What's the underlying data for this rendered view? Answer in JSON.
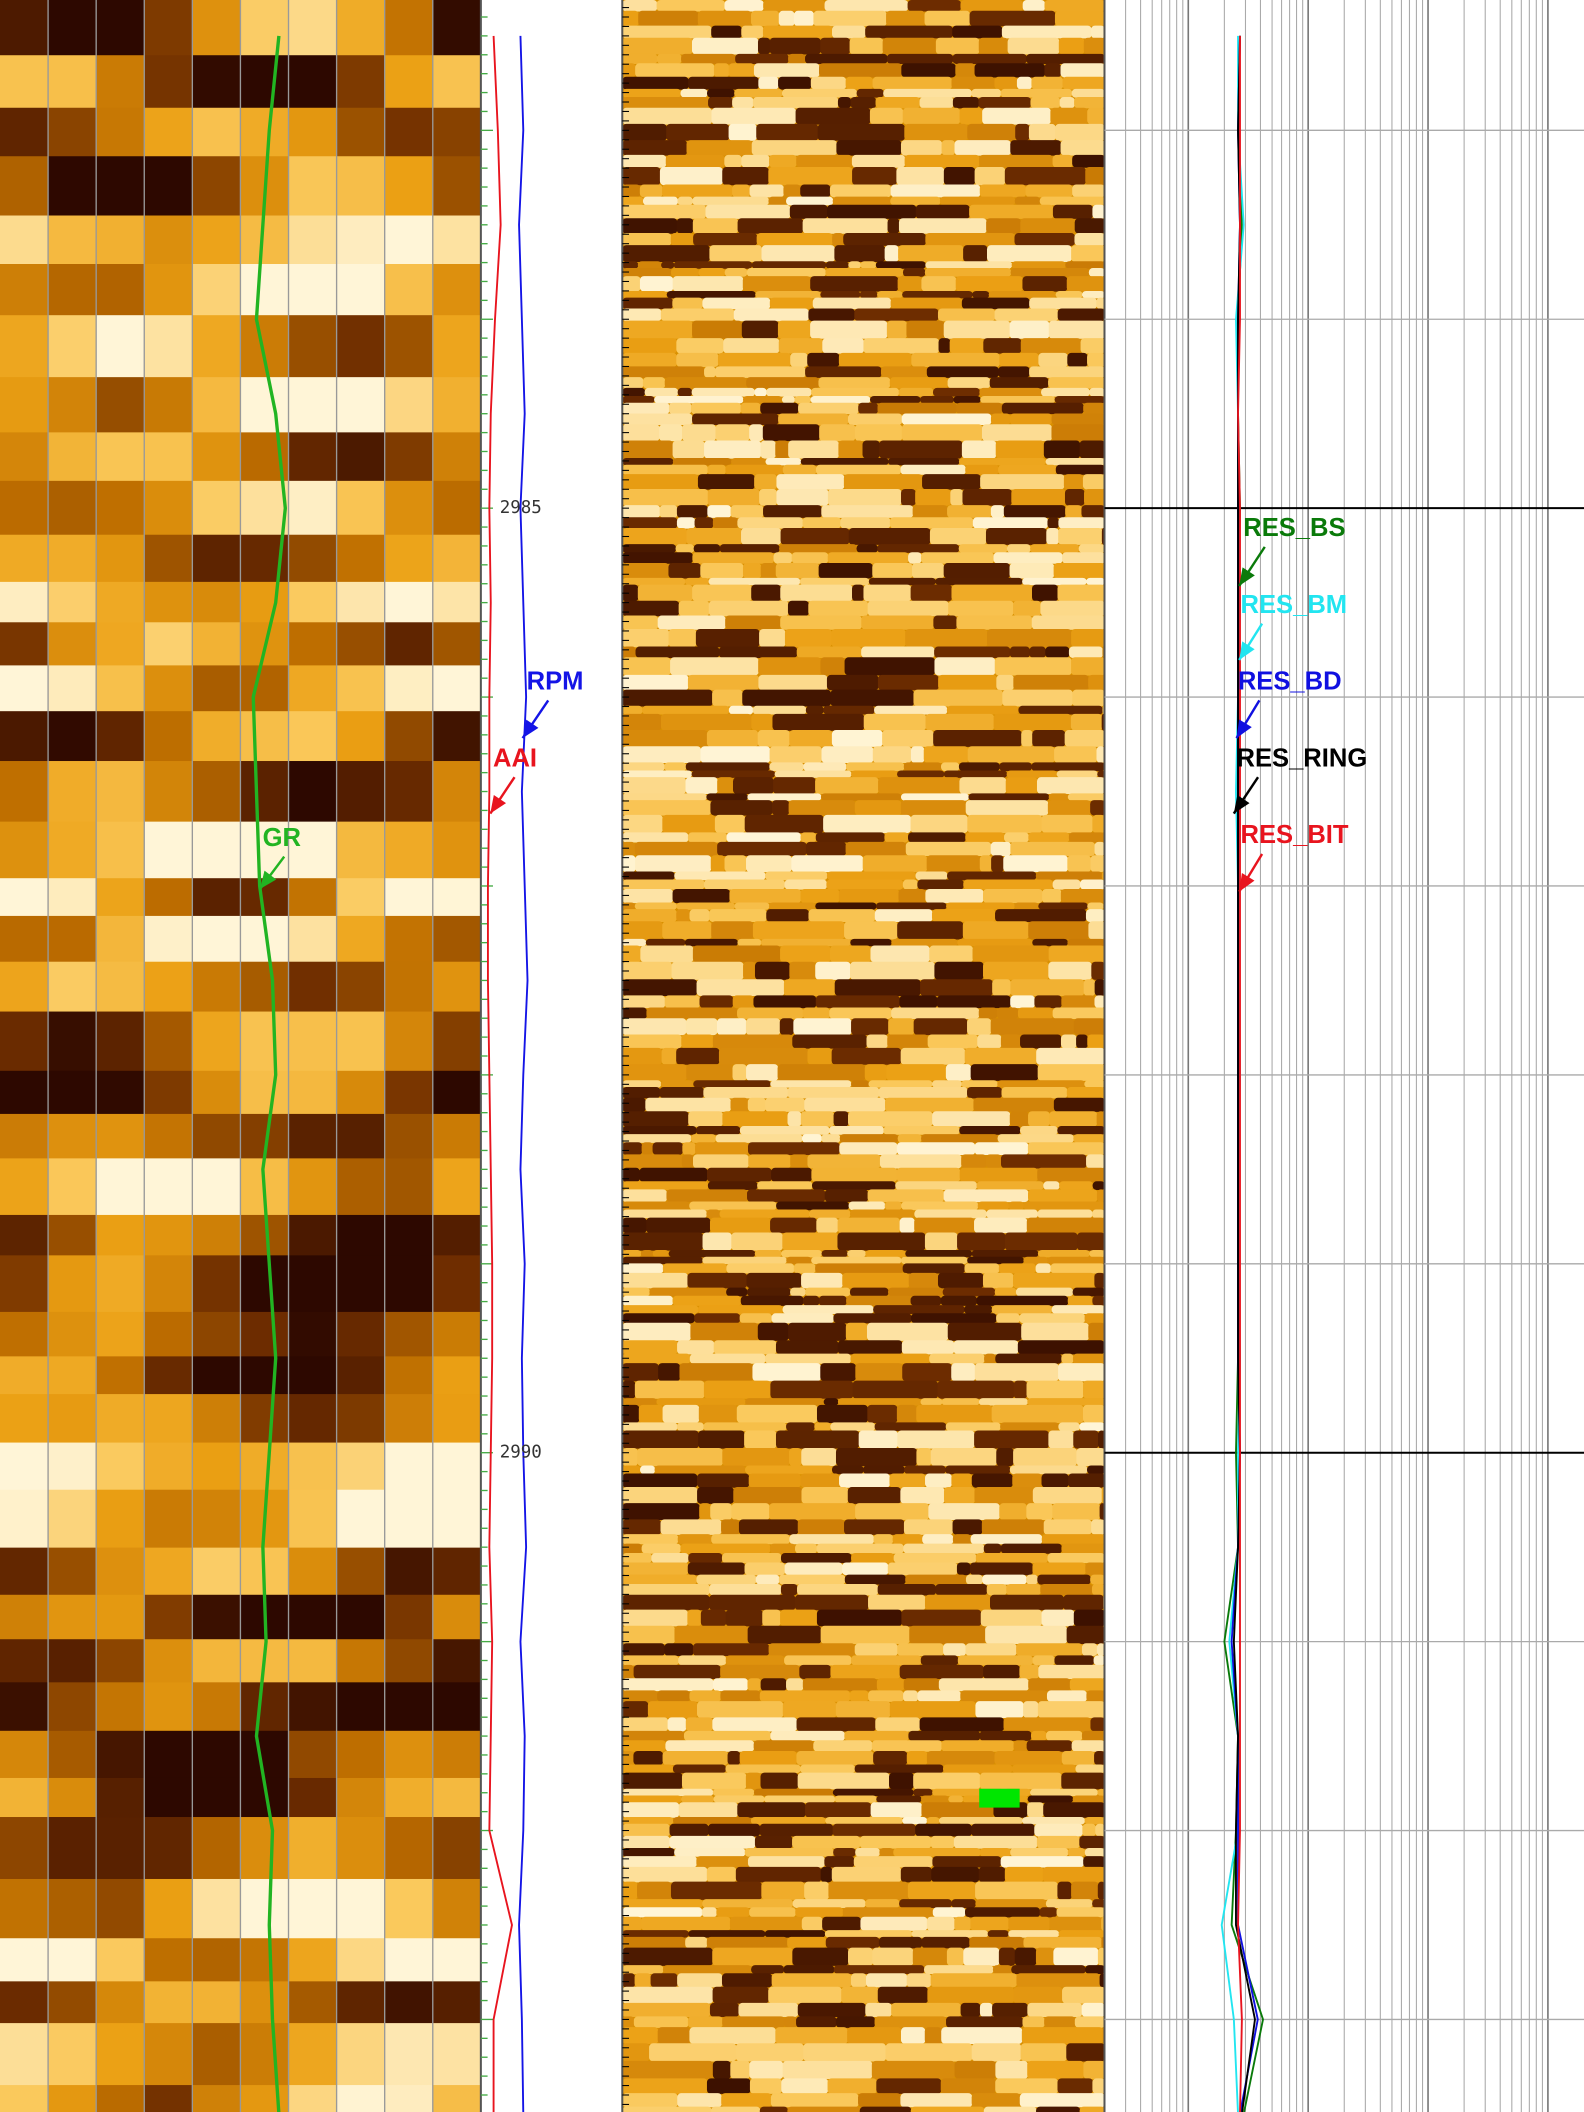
{
  "chart_data": {
    "type": "well-log",
    "ylim": [
      2982.31,
      2993.49
    ],
    "yticks": [
      2985,
      2990
    ],
    "depths": [
      2982.5,
      2983,
      2983.5,
      2984,
      2984.5,
      2985,
      2985.5,
      2986,
      2986.5,
      2987,
      2987.5,
      2988,
      2988.5,
      2989,
      2989.5,
      2990,
      2990.5,
      2991,
      2991.5,
      2992,
      2992.5,
      2993,
      2993.5
    ],
    "tracks": [
      {
        "xlim": [
          0,
          150
        ],
        "series": [
          {
            "name": "GR",
            "color": "#22b422",
            "values": [
              87,
              84,
              82,
              80,
              86,
              89,
              86,
              79,
              80,
              81,
              85,
              86,
              82,
              84,
              86,
              84,
              82,
              83,
              80,
              85,
              84,
              85,
              87
            ]
          }
        ]
      },
      {
        "xlim": [
          0,
          100
        ],
        "series": [
          {
            "name": "AAI",
            "color": "#e8141e",
            "values": [
              9,
              12,
              14,
              10,
              7,
              6,
              7,
              6,
              6,
              5,
              5,
              6,
              7,
              8,
              8,
              7,
              6,
              8,
              7,
              6,
              22,
              9,
              9
            ]
          },
          {
            "name": "RPM",
            "color": "#1414e6",
            "values": [
              28,
              30,
              27,
              29,
              31,
              28,
              30,
              32,
              29,
              31,
              33,
              30,
              28,
              31,
              29,
              30,
              32,
              28,
              31,
              30,
              27,
              29,
              30
            ]
          }
        ]
      },
      {
        "xlim": [
          0.2,
          2000
        ],
        "log": true,
        "series": [
          {
            "name": "RES_BS",
            "color": "#0a7a0a",
            "values": [
              2.7,
              2.6,
              2.8,
              2.6,
              2.6,
              2.7,
              2.6,
              2.6,
              2.6,
              2.6,
              2.6,
              2.6,
              2.6,
              2.6,
              2.6,
              2.5,
              2.6,
              2.0,
              2.6,
              2.5,
              2.3,
              4.2,
              2.9
            ]
          },
          {
            "name": "RES_BM",
            "color": "#22e5f0",
            "values": [
              2.6,
              2.6,
              2.9,
              2.5,
              2.6,
              2.6,
              2.7,
              2.6,
              2.5,
              2.6,
              2.6,
              2.7,
              2.6,
              2.6,
              2.7,
              2.6,
              2.6,
              2.2,
              2.6,
              2.6,
              1.9,
              2.4,
              2.6
            ]
          },
          {
            "name": "RES_BD",
            "color": "#1010e0",
            "values": [
              2.7,
              2.6,
              2.7,
              2.6,
              2.6,
              2.6,
              2.6,
              2.6,
              2.6,
              2.6,
              2.6,
              2.6,
              2.6,
              2.6,
              2.6,
              2.7,
              2.6,
              2.3,
              2.6,
              2.6,
              2.6,
              3.8,
              2.7
            ]
          },
          {
            "name": "RES_RING",
            "color": "#000000",
            "values": [
              2.7,
              2.6,
              2.7,
              2.6,
              2.6,
              2.6,
              2.6,
              2.6,
              2.6,
              2.6,
              2.6,
              2.6,
              2.6,
              2.6,
              2.6,
              2.7,
              2.6,
              2.4,
              2.6,
              2.5,
              2.5,
              3.6,
              2.8
            ]
          },
          {
            "name": "RES_BIT",
            "color": "#e8141e",
            "values": [
              2.7,
              2.7,
              2.7,
              2.7,
              2.6,
              2.7,
              2.7,
              2.7,
              2.7,
              2.7,
              2.7,
              2.7,
              2.7,
              2.7,
              2.7,
              2.7,
              2.7,
              2.7,
              2.7,
              2.7,
              2.6,
              2.8,
              2.7
            ]
          }
        ]
      }
    ]
  }
}
